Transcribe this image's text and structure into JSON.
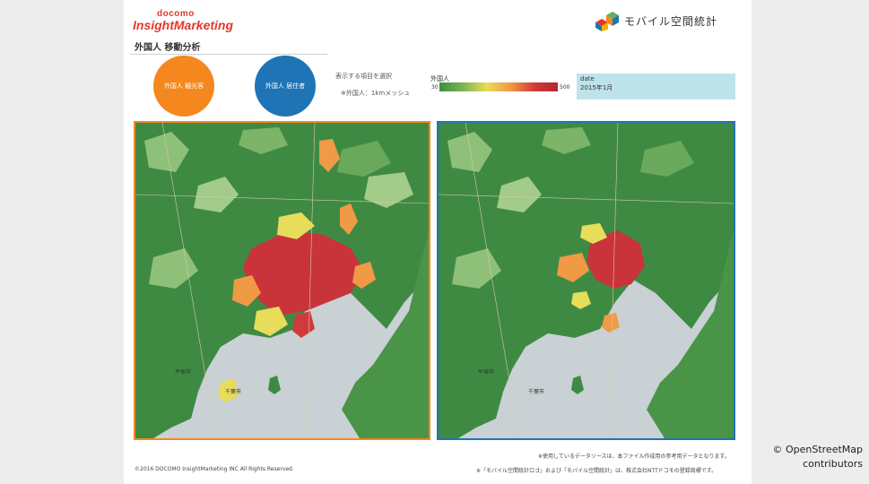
{
  "header": {
    "brand_top": "docomo",
    "brand_main": "InsightMarketing",
    "page_title": "外国人 移動分析",
    "logo_text": "モバイル空間統計"
  },
  "buttons": {
    "tourist": "外国人 観光客",
    "resident": "外国人 居住者"
  },
  "controls": {
    "select_label": "表示する項目を選択",
    "select_value": "※外国人：1kmメッシュ"
  },
  "legend": {
    "title": "外国人",
    "min": "30",
    "max": "500",
    "colors": [
      "#3c8f40",
      "#7eb350",
      "#e7dd5a",
      "#f09a45",
      "#d03b3a",
      "#b4262f"
    ]
  },
  "date_box": {
    "label": "date",
    "value": "2015年1月"
  },
  "maps": {
    "left_labels": [
      "平塚市",
      "千葉市"
    ],
    "right_labels": [
      "平塚市",
      "千葉市"
    ]
  },
  "footer": {
    "note1": "※使用しているデータソースは、本ファイル作成用の参考用データとなります。",
    "note2": "※「モバイル空間統計ロゴ」および「モバイル空間統計」は、株式会社NTTドコモの登録商標です。",
    "copyright": "©2016 DOCOMO InsightMarketing INC All Rights Reserved.",
    "osm_line1": "© OpenStreetMap",
    "osm_line2": "contributors"
  },
  "colors": {
    "tourist": "#f4881f",
    "resident": "#1f74b6",
    "land_dark": "#3f8a43",
    "land_light": "#8fc07a",
    "sea": "#c9d1d4",
    "hot": "#c8343a"
  }
}
